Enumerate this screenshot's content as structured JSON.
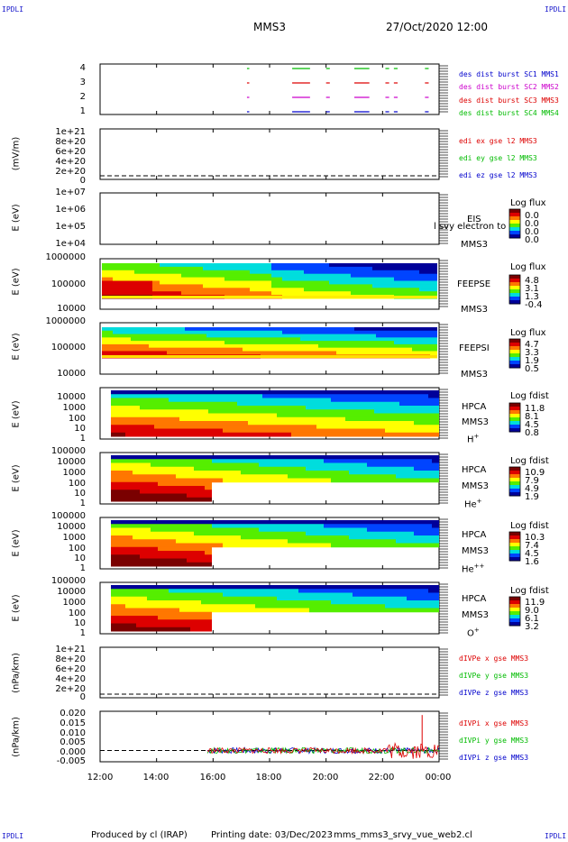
{
  "header": {
    "corner_tl": "IPDLI",
    "corner_tr": "IPDLI",
    "corner_bl": "IPDLI",
    "corner_br": "IPDLI",
    "spacecraft": "MMS3",
    "datetime": "27/Oct/2020 12:00"
  },
  "footer": {
    "produced_by": "Produced by cl (IRAP)",
    "printing_date": "Printing date: 03/Dec/2023",
    "script_name": "mms_mms3_srvy_vue_web2.cl"
  },
  "xaxis": {
    "ticks": [
      "12:00",
      "14:00",
      "16:00",
      "18:00",
      "20:00",
      "22:00",
      "00:00"
    ]
  },
  "panels": {
    "burst": {
      "yticks": [
        "4",
        "3",
        "2",
        "1"
      ],
      "legend": [
        {
          "text": "des dist burst SC1 MMS1",
          "color": "#0000cc"
        },
        {
          "text": "des dist burst SC2 MMS2",
          "color": "#cc00cc"
        },
        {
          "text": "des dist burst SC3 MMS3",
          "color": "#dd0000"
        },
        {
          "text": "des dist burst SC4 MMS4",
          "color": "#00bb00"
        }
      ]
    },
    "edi": {
      "ylabel": "(mV/m)",
      "yticks": [
        "1e+21",
        "8e+20",
        "6e+20",
        "4e+20",
        "2e+20",
        "0"
      ],
      "legend": [
        {
          "text": "edi ex gse l2 MMS3",
          "color": "#dd0000"
        },
        {
          "text": "edi ey gse l2 MMS3",
          "color": "#00bb00"
        },
        {
          "text": "edi ez gse l2 MMS3",
          "color": "#0000cc"
        }
      ]
    },
    "eis": {
      "ylabel": "E (eV)",
      "yticks": [
        "1e+07",
        "1e+06",
        "1e+05",
        "1e+04"
      ],
      "inst": "EIS",
      "sc": "MMS3",
      "overlap_text": "l svy electron to",
      "cb_title": "Log flux",
      "cb_values": [
        "0.0",
        "0.0",
        "0.0",
        "0.0"
      ]
    },
    "feepse": {
      "ylabel": "E (eV)",
      "yticks": [
        "1000000",
        "100000",
        "10000"
      ],
      "inst": "FEEPSE",
      "sc": "MMS3",
      "cb_title": "Log flux",
      "cb_values": [
        "4.8",
        "3.1",
        "1.3",
        "-0.4"
      ]
    },
    "feepsi": {
      "ylabel": "E (eV)",
      "yticks": [
        "1000000",
        "100000",
        "10000"
      ],
      "inst": "FEEPSI",
      "sc": "MMS3",
      "cb_title": "Log flux",
      "cb_values": [
        "4.7",
        "3.3",
        "1.9",
        "0.5"
      ]
    },
    "hpca_h": {
      "ylabel": "E (eV)",
      "yticks": [
        "10000",
        "1000",
        "100",
        "10",
        "1"
      ],
      "inst": "HPCA",
      "sc": "MMS3",
      "species": "H",
      "charge": "+",
      "cb_title": "Log fdist",
      "cb_values": [
        "11.8",
        "8.1",
        "4.5",
        "0.8"
      ]
    },
    "hpca_he": {
      "ylabel": "E (eV)",
      "yticks": [
        "100000",
        "10000",
        "1000",
        "100",
        "10",
        "1"
      ],
      "inst": "HPCA",
      "sc": "MMS3",
      "species": "He",
      "charge": "+",
      "cb_title": "Log fdist",
      "cb_values": [
        "10.9",
        "7.9",
        "4.9",
        "1.9"
      ]
    },
    "hpca_he2": {
      "ylabel": "E (eV)",
      "yticks": [
        "100000",
        "10000",
        "1000",
        "100",
        "10",
        "1"
      ],
      "inst": "HPCA",
      "sc": "MMS3",
      "species": "He",
      "charge": "++",
      "cb_title": "Log fdist",
      "cb_values": [
        "10.3",
        "7.4",
        "4.5",
        "1.6"
      ]
    },
    "hpca_o": {
      "ylabel": "E (eV)",
      "yticks": [
        "100000",
        "10000",
        "1000",
        "100",
        "10",
        "1"
      ],
      "inst": "HPCA",
      "sc": "MMS3",
      "species": "O",
      "charge": "+",
      "cb_title": "Log fdist",
      "cb_values": [
        "11.9",
        "9.0",
        "6.1",
        "3.2"
      ]
    },
    "divpe": {
      "ylabel": "(nPa/km)",
      "yticks": [
        "1e+21",
        "8e+20",
        "6e+20",
        "4e+20",
        "2e+20",
        "0"
      ],
      "legend": [
        {
          "text": "dIVPe x gse MMS3",
          "color": "#dd0000"
        },
        {
          "text": "dIVPe y gse MMS3",
          "color": "#00bb00"
        },
        {
          "text": "dIVPe z gse MMS3",
          "color": "#0000cc"
        }
      ]
    },
    "divpi": {
      "ylabel": "(nPa/km)",
      "yticks": [
        "0.020",
        "0.015",
        "0.010",
        "0.005",
        "0.000",
        "-0.005"
      ],
      "legend": [
        {
          "text": "dIVPi x gse MMS3",
          "color": "#dd0000"
        },
        {
          "text": "dIVPi y gse MMS3",
          "color": "#00bb00"
        },
        {
          "text": "dIVPi z gse MMS3",
          "color": "#0000cc"
        }
      ]
    }
  },
  "chart_data": {
    "type": "heatmap",
    "x_range": [
      "12:00",
      "00:00"
    ],
    "burst_intervals": {
      "series": [
        {
          "name": "des dist burst SC1 MMS1",
          "y": 1,
          "color": "#0000cc"
        },
        {
          "name": "des dist burst SC2 MMS2",
          "y": 2,
          "color": "#cc00cc"
        },
        {
          "name": "des dist burst SC3 MMS3",
          "y": 3,
          "color": "#dd0000"
        },
        {
          "name": "des dist burst SC4 MMS4",
          "y": 4,
          "color": "#00bb00"
        }
      ],
      "intervals_hours": [
        [
          17.2,
          17.25
        ],
        [
          18.8,
          19.4
        ],
        [
          20.0,
          20.1
        ],
        [
          21.0,
          21.5
        ],
        [
          22.1,
          22.2
        ],
        [
          22.4,
          22.5
        ],
        [
          23.5,
          23.6
        ]
      ]
    },
    "divpi": {
      "ylim": [
        -0.006,
        0.021
      ],
      "start_hour": 15.8,
      "peak": {
        "hour": 23.4,
        "value": 0.019
      }
    },
    "colormap": [
      "#7a0000",
      "#dd0000",
      "#ff7700",
      "#ffff00",
      "#55ee00",
      "#00dddd",
      "#0044ff",
      "#000099"
    ]
  }
}
